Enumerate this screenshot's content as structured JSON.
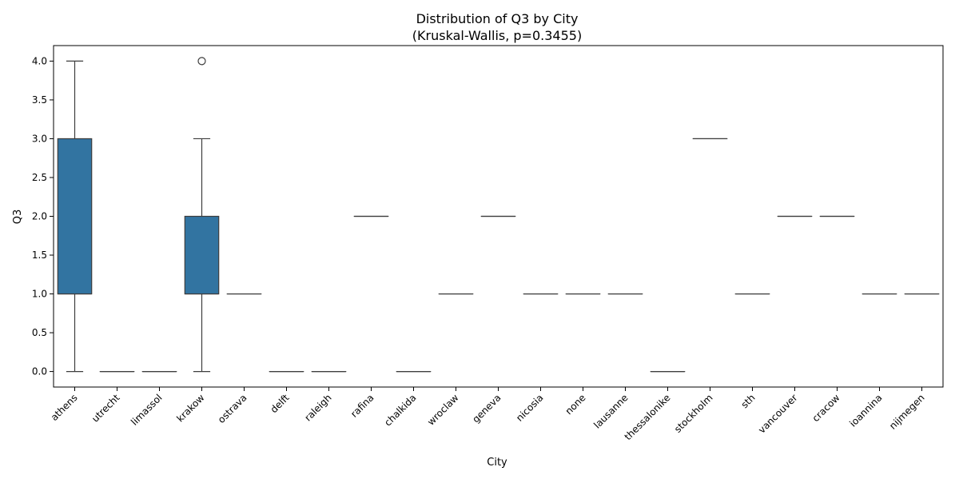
{
  "chart_data": {
    "type": "box",
    "title": "Distribution of Q3 by City",
    "subtitle": "(Kruskal-Wallis, p=0.3455)",
    "xlabel": "City",
    "ylabel": "Q3",
    "ylim": [
      -0.2,
      4.2
    ],
    "yticks": [
      0.0,
      0.5,
      1.0,
      1.5,
      2.0,
      2.5,
      3.0,
      3.5,
      4.0
    ],
    "ytick_labels": [
      "0.0",
      "0.5",
      "1.0",
      "1.5",
      "2.0",
      "2.5",
      "3.0",
      "3.5",
      "4.0"
    ],
    "categories": [
      "athens",
      "utrecht",
      "limassol",
      "krakow",
      "ostrava",
      "delft",
      "raleigh",
      "rafina",
      "chalkida",
      "wroclaw",
      "geneva",
      "nicosia",
      "none",
      "lausanne",
      "thessalonike",
      "stockholm",
      "sth",
      "vancouver",
      "cracow",
      "ioannina",
      "nijmegen"
    ],
    "boxes": [
      {
        "category": "athens",
        "whislo": 0,
        "q1": 1,
        "med": 1,
        "q3": 3,
        "whishi": 4,
        "fliers": []
      },
      {
        "category": "utrecht",
        "whislo": 0,
        "q1": 0,
        "med": 0,
        "q3": 0,
        "whishi": 0,
        "fliers": []
      },
      {
        "category": "limassol",
        "whislo": 0,
        "q1": 0,
        "med": 0,
        "q3": 0,
        "whishi": 0,
        "fliers": []
      },
      {
        "category": "krakow",
        "whislo": 0,
        "q1": 1,
        "med": 1,
        "q3": 2,
        "whishi": 3,
        "fliers": [
          4
        ]
      },
      {
        "category": "ostrava",
        "whislo": 1,
        "q1": 1,
        "med": 1,
        "q3": 1,
        "whishi": 1,
        "fliers": []
      },
      {
        "category": "delft",
        "whislo": 0,
        "q1": 0,
        "med": 0,
        "q3": 0,
        "whishi": 0,
        "fliers": []
      },
      {
        "category": "raleigh",
        "whislo": 0,
        "q1": 0,
        "med": 0,
        "q3": 0,
        "whishi": 0,
        "fliers": []
      },
      {
        "category": "rafina",
        "whislo": 2,
        "q1": 2,
        "med": 2,
        "q3": 2,
        "whishi": 2,
        "fliers": []
      },
      {
        "category": "chalkida",
        "whislo": 0,
        "q1": 0,
        "med": 0,
        "q3": 0,
        "whishi": 0,
        "fliers": []
      },
      {
        "category": "wroclaw",
        "whislo": 1,
        "q1": 1,
        "med": 1,
        "q3": 1,
        "whishi": 1,
        "fliers": []
      },
      {
        "category": "geneva",
        "whislo": 2,
        "q1": 2,
        "med": 2,
        "q3": 2,
        "whishi": 2,
        "fliers": []
      },
      {
        "category": "nicosia",
        "whislo": 1,
        "q1": 1,
        "med": 1,
        "q3": 1,
        "whishi": 1,
        "fliers": []
      },
      {
        "category": "none",
        "whislo": 1,
        "q1": 1,
        "med": 1,
        "q3": 1,
        "whishi": 1,
        "fliers": []
      },
      {
        "category": "lausanne",
        "whislo": 1,
        "q1": 1,
        "med": 1,
        "q3": 1,
        "whishi": 1,
        "fliers": []
      },
      {
        "category": "thessalonike",
        "whislo": 0,
        "q1": 0,
        "med": 0,
        "q3": 0,
        "whishi": 0,
        "fliers": []
      },
      {
        "category": "stockholm",
        "whislo": 3,
        "q1": 3,
        "med": 3,
        "q3": 3,
        "whishi": 3,
        "fliers": []
      },
      {
        "category": "sth",
        "whislo": 1,
        "q1": 1,
        "med": 1,
        "q3": 1,
        "whishi": 1,
        "fliers": []
      },
      {
        "category": "vancouver",
        "whislo": 2,
        "q1": 2,
        "med": 2,
        "q3": 2,
        "whishi": 2,
        "fliers": []
      },
      {
        "category": "cracow",
        "whislo": 2,
        "q1": 2,
        "med": 2,
        "q3": 2,
        "whishi": 2,
        "fliers": []
      },
      {
        "category": "ioannina",
        "whislo": 1,
        "q1": 1,
        "med": 1,
        "q3": 1,
        "whishi": 1,
        "fliers": []
      },
      {
        "category": "nijmegen",
        "whislo": 1,
        "q1": 1,
        "med": 1,
        "q3": 1,
        "whishi": 1,
        "fliers": []
      }
    ],
    "box_color": "#3274a1",
    "line_color": "#3d3d3d",
    "grid": false,
    "legend": false
  }
}
